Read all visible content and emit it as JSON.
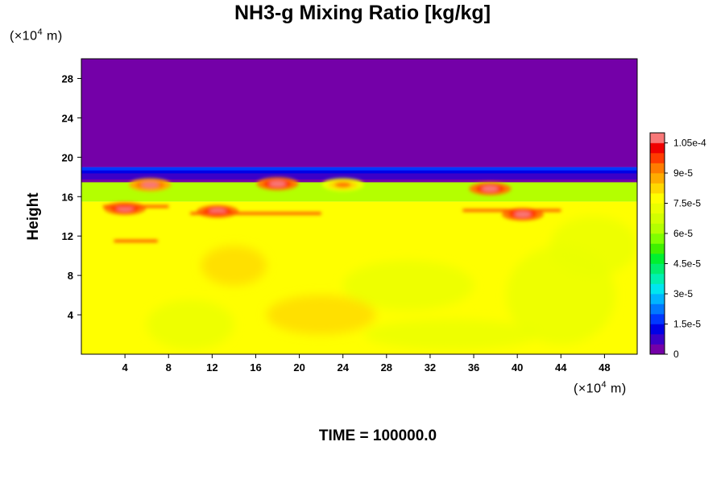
{
  "chart_data": {
    "type": "heatmap",
    "title": "NH3-g Mixing Ratio [kg/kg]",
    "ylabel": "Height",
    "x_unit_prefix": "(×10",
    "x_unit_exp": "4",
    "x_unit_suffix": " m)",
    "y_unit_prefix": "(×10",
    "y_unit_exp": "4",
    "y_unit_suffix": " m)",
    "xlim": [
      0,
      51
    ],
    "ylim": [
      0,
      30
    ],
    "x_ticks": [
      4,
      8,
      12,
      16,
      20,
      24,
      28,
      32,
      36,
      40,
      44,
      48
    ],
    "y_ticks": [
      4,
      8,
      12,
      16,
      20,
      24,
      28
    ],
    "colorbar": {
      "min": 0,
      "max": 0.00011,
      "levels": 22,
      "tick_values": [
        0,
        1.5e-05,
        3e-05,
        4.5e-05,
        6e-05,
        7.5e-05,
        9e-05,
        0.000105
      ],
      "tick_labels": [
        "0",
        "1.5e-5",
        "3e-5",
        "4.5e-5",
        "6e-5",
        "7.5e-5",
        "9e-5",
        "1.05e-4"
      ],
      "colors": [
        "#7400a8",
        "#3b00c8",
        "#0000e6",
        "#0038ff",
        "#0078ff",
        "#00b4ff",
        "#00e6f0",
        "#00f0b0",
        "#00ee70",
        "#00f030",
        "#40f000",
        "#80ff00",
        "#b4ff00",
        "#d2ff00",
        "#eaff00",
        "#ffff00",
        "#ffd800",
        "#ffac00",
        "#ff7c00",
        "#ff3c00",
        "#f00000",
        "#f87878"
      ]
    },
    "layers": [
      {
        "region": "upper atmosphere",
        "y_range": [
          19,
          30
        ],
        "value": 0
      },
      {
        "region": "transition band",
        "y_range": [
          17.5,
          19
        ],
        "value_range": [
          4.5e-06,
          1.5e-05
        ]
      },
      {
        "region": "mixed layer",
        "y_range": [
          15.5,
          17.5
        ],
        "value": 6e-05
      },
      {
        "region": "lower atmosphere",
        "y_range": [
          0,
          15.5
        ],
        "value": 7.8e-05
      }
    ],
    "maxima": [
      {
        "x": 6.3,
        "y": 17.2,
        "value": 0.000105
      },
      {
        "x": 4,
        "y": 14.8,
        "value": 0.00011
      },
      {
        "x": 12.5,
        "y": 14.5,
        "value": 0.00011
      },
      {
        "x": 18,
        "y": 17.3,
        "value": 0.00011
      },
      {
        "x": 24,
        "y": 17.2,
        "value": 9e-05
      },
      {
        "x": 37.5,
        "y": 16.8,
        "value": 0.00011
      },
      {
        "x": 40.5,
        "y": 14.2,
        "value": 0.00011
      }
    ]
  },
  "time_label": "TIME = 100000.0"
}
